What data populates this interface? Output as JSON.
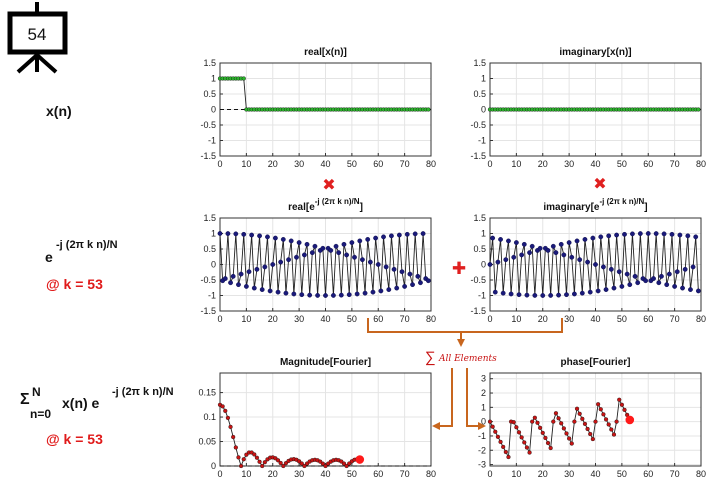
{
  "slide_number": "54",
  "row_labels": {
    "xn": "x(n)",
    "basis_base": "e",
    "basis_exp": "-j (2π k n)/N",
    "k_label_1": "@ k = 53",
    "sum_sigma": "Σ",
    "sum_upper": "N",
    "sum_lower": "n=0",
    "sum_mid": "x(n) e",
    "sum_exp": "-j (2π k n)/N",
    "k_label_2": "@ k = 53"
  },
  "operators": {
    "multiply_1": "✖",
    "multiply_2": "✖",
    "plus": "✚",
    "sum_glyph": "∑",
    "sum_text": "All Elements"
  },
  "colors": {
    "green_marker": "#2db52d",
    "navy_marker": "#1a1a7a",
    "red_marker": "#c81414",
    "highlight": "#ff1a1a",
    "arrow": "#c8661e",
    "operator_red": "#e02020"
  },
  "params": {
    "N": 80,
    "k": 53,
    "pulse_len": 10
  },
  "chart_data": [
    {
      "id": "real-x",
      "type": "line",
      "title": "real[x(n)]",
      "xlim": [
        0,
        80
      ],
      "ylim": [
        -1.5,
        1.5
      ],
      "xticks": [
        0,
        10,
        20,
        30,
        40,
        50,
        60,
        70,
        80
      ],
      "yticks": [
        1.5,
        1,
        0.5,
        0,
        -0.5,
        -1,
        -1.5
      ],
      "xtick_labels": [
        "0",
        "10",
        "20",
        "30",
        "40",
        "50",
        "60",
        "70",
        "80"
      ],
      "ytick_labels": [
        "1.5",
        "1",
        "0.5",
        "0",
        "-0.5",
        "-1",
        "-1.5"
      ],
      "series": [
        {
          "signal": "pulse",
          "values": "1 for n=0..9, 0 otherwise"
        }
      ]
    },
    {
      "id": "imag-x",
      "type": "line",
      "title": "imaginary[x(n)]",
      "xlim": [
        0,
        80
      ],
      "ylim": [
        -1.5,
        1.5
      ],
      "xticks": [
        0,
        10,
        20,
        30,
        40,
        50,
        60,
        70,
        80
      ],
      "yticks": [
        1.5,
        1,
        0.5,
        0,
        -0.5,
        -1,
        -1.5
      ],
      "xtick_labels": [
        "0",
        "10",
        "20",
        "30",
        "40",
        "50",
        "60",
        "70",
        "80"
      ],
      "ytick_labels": [
        "1.5",
        "1",
        "0.5",
        "0",
        "-0.5",
        "-1",
        "-1.5"
      ],
      "series": [
        {
          "signal": "zero",
          "values": "0 for all n"
        }
      ]
    },
    {
      "id": "real-e",
      "type": "line",
      "title_base": "real[e",
      "title_exp": "-j (2π k n)/N",
      "title_end": "]",
      "xlim": [
        0,
        80
      ],
      "ylim": [
        -1.5,
        1.5
      ],
      "xticks": [
        0,
        10,
        20,
        30,
        40,
        50,
        60,
        70,
        80
      ],
      "yticks": [
        1.5,
        1,
        0.5,
        0,
        -0.5,
        -1,
        -1.5
      ],
      "xtick_labels": [
        "0",
        "10",
        "20",
        "30",
        "40",
        "50",
        "60",
        "70",
        "80"
      ],
      "ytick_labels": [
        "1.5",
        "1",
        "0.5",
        "0",
        "-0.5",
        "-1",
        "-1.5"
      ],
      "series": [
        {
          "signal": "cos(2πkn/N)"
        }
      ]
    },
    {
      "id": "imag-e",
      "type": "line",
      "title_base": "imaginary[e",
      "title_exp": "-j (2π k n)/N",
      "title_end": "]",
      "xlim": [
        0,
        80
      ],
      "ylim": [
        -1.5,
        1.5
      ],
      "xticks": [
        0,
        10,
        20,
        30,
        40,
        50,
        60,
        70,
        80
      ],
      "yticks": [
        1.5,
        1,
        0.5,
        0,
        -0.5,
        -1,
        -1.5
      ],
      "xtick_labels": [
        "0",
        "10",
        "20",
        "30",
        "40",
        "50",
        "60",
        "70",
        "80"
      ],
      "ytick_labels": [
        "1.5",
        "1",
        "0.5",
        "0",
        "-0.5",
        "-1",
        "-1.5"
      ],
      "series": [
        {
          "signal": "-sin(2πkn/N)"
        }
      ]
    },
    {
      "id": "magnitude",
      "type": "line",
      "title": "Magnitude[Fourier]",
      "xlim": [
        0,
        80
      ],
      "ylim": [
        0,
        0.19
      ],
      "xticks": [
        0,
        10,
        20,
        30,
        40,
        50,
        60,
        70,
        80
      ],
      "yticks": [
        0,
        0.05,
        0.1,
        0.15
      ],
      "xtick_labels": [
        "0",
        "10",
        "20",
        "30",
        "40",
        "50",
        "60",
        "70",
        "80"
      ],
      "ytick_labels": [
        "0",
        "0.05",
        "0.1",
        "0.15"
      ],
      "series": [
        {
          "signal": "|DFT(pulse)|/N for k=0..53",
          "highlight_k": 53
        }
      ]
    },
    {
      "id": "phase",
      "type": "line",
      "title": "phase[Fourier]",
      "xlim": [
        0,
        80
      ],
      "ylim": [
        -3.1,
        3.4
      ],
      "xticks": [
        0,
        10,
        20,
        30,
        40,
        50,
        60,
        70,
        80
      ],
      "yticks": [
        3,
        2,
        1,
        0,
        -1,
        -2,
        -3
      ],
      "xtick_labels": [
        "0",
        "10",
        "20",
        "30",
        "40",
        "50",
        "60",
        "70",
        "80"
      ],
      "ytick_labels": [
        "3",
        "2",
        "1",
        "0",
        "-1",
        "-2",
        "-3"
      ],
      "series": [
        {
          "signal": "angle(DFT(pulse)) for k=0..53",
          "highlight_k": 53
        }
      ]
    }
  ]
}
